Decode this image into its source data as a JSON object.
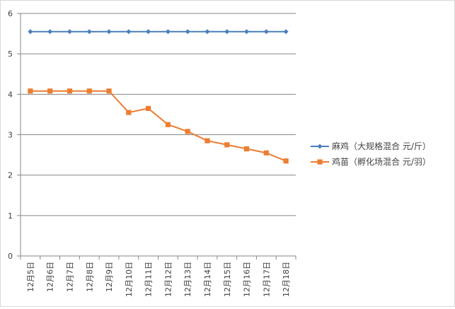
{
  "chart_data": {
    "type": "line",
    "categories": [
      "12月5日",
      "12月6日",
      "12月7日",
      "12月8日",
      "12月9日",
      "12月10日",
      "12月11日",
      "12月12日",
      "12月13日",
      "12月14日",
      "12月15日",
      "12月16日",
      "12月17日",
      "12月18日"
    ],
    "series": [
      {
        "name": "麻鸡（大规格混合 元/斤）",
        "color": "#4a7ebb",
        "marker": "diamond",
        "values": [
          5.55,
          5.55,
          5.55,
          5.55,
          5.55,
          5.55,
          5.55,
          5.55,
          5.55,
          5.55,
          5.55,
          5.55,
          5.55,
          5.55
        ]
      },
      {
        "name": "鸡苗（孵化场混合 元/羽）",
        "color": "#ed7d31",
        "marker": "square",
        "values": [
          4.08,
          4.08,
          4.08,
          4.08,
          4.08,
          3.55,
          3.65,
          3.25,
          3.08,
          2.85,
          2.75,
          2.65,
          2.55,
          2.35
        ]
      }
    ],
    "y_ticks": [
      "0",
      "1",
      "2",
      "3",
      "4",
      "5",
      "6"
    ],
    "ylim": [
      0,
      6
    ],
    "grid": true,
    "legend_position": "right"
  }
}
